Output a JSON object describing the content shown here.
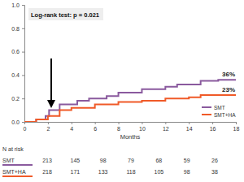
{
  "chart_data": {
    "type": "step",
    "title": "Log-rank test: p = 0.021",
    "x_label": "Months",
    "xlim": [
      0,
      18
    ],
    "xticks": [
      0,
      2,
      4,
      6,
      8,
      10,
      12,
      14,
      16,
      18
    ],
    "ylim": [
      0,
      1
    ],
    "yticks": [
      {
        "value": 0,
        "label": "0.0"
      },
      {
        "value": 0.2,
        "label": "0.2"
      },
      {
        "value": 0.4,
        "label": "0.4"
      },
      {
        "value": 0.6,
        "label": "0.6"
      },
      {
        "value": 0.8,
        "label": "0.8"
      },
      {
        "value": 1,
        "label": "1.0"
      }
    ],
    "grid": false,
    "legend": "lower right",
    "series": [
      {
        "name": "SMT",
        "color": "#8a5a9e",
        "end_label": "36%",
        "x": [
          0,
          1,
          1.8,
          2.1,
          3,
          4.5,
          5.5,
          7,
          8,
          10,
          12,
          13,
          15,
          16.5,
          18
        ],
        "values": [
          0,
          0.02,
          0.05,
          0.1,
          0.15,
          0.18,
          0.2,
          0.22,
          0.25,
          0.28,
          0.3,
          0.32,
          0.35,
          0.36,
          0.36
        ]
      },
      {
        "name": "SMT+HA",
        "color": "#f05a28",
        "end_label": "23%",
        "x": [
          0,
          1,
          2,
          3,
          4,
          6,
          8,
          10,
          12,
          14,
          15,
          18
        ],
        "values": [
          0,
          0.02,
          0.05,
          0.1,
          0.12,
          0.15,
          0.17,
          0.18,
          0.2,
          0.21,
          0.23,
          0.23
        ]
      }
    ],
    "risk_table": {
      "title": "N at risk",
      "rows": [
        {
          "name": "SMT",
          "values": [
            213,
            145,
            98,
            79,
            68,
            59,
            26
          ]
        },
        {
          "name": "SMT+HA",
          "values": [
            218,
            171,
            133,
            118,
            105,
            98,
            38
          ]
        }
      ]
    }
  }
}
